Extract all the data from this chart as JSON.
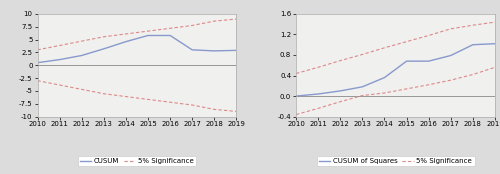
{
  "years": [
    2010,
    2011,
    2012,
    2013,
    2014,
    2015,
    2016,
    2017,
    2018,
    2019
  ],
  "cusum": [
    0.5,
    1.1,
    1.9,
    3.2,
    4.6,
    5.8,
    5.8,
    3.0,
    2.8,
    2.9
  ],
  "cusum_upper": [
    3.0,
    3.85,
    4.7,
    5.55,
    6.1,
    6.65,
    7.2,
    7.75,
    8.6,
    9.0
  ],
  "cusum_lower": [
    -3.0,
    -3.85,
    -4.7,
    -5.55,
    -6.1,
    -6.65,
    -7.2,
    -7.75,
    -8.6,
    -9.0
  ],
  "cusum_ylim": [
    -10.0,
    10.0
  ],
  "cusum_yticks": [
    -10.0,
    -7.5,
    -5.0,
    -2.5,
    0.0,
    2.5,
    5.0,
    7.5,
    10.0
  ],
  "cusum_sq": [
    0.0,
    0.04,
    0.1,
    0.18,
    0.36,
    0.68,
    0.68,
    0.79,
    1.0,
    1.02
  ],
  "cusum_sq_upper": [
    0.44,
    0.56,
    0.69,
    0.81,
    0.94,
    1.06,
    1.18,
    1.31,
    1.38,
    1.44
  ],
  "cusum_sq_lower": [
    -0.36,
    -0.24,
    -0.11,
    0.01,
    0.06,
    0.14,
    0.22,
    0.31,
    0.42,
    0.56
  ],
  "cusum_sq_ylim": [
    -0.4,
    1.6
  ],
  "cusum_sq_yticks": [
    -0.4,
    0.0,
    0.4,
    0.8,
    1.2,
    1.6
  ],
  "line_color": "#8899cc",
  "sig_color": "#dd8888",
  "background_color": "#dcdcdc",
  "plot_bg_color": "#f0f0ee",
  "spine_color": "#aaaaaa",
  "zero_line_color": "#888888"
}
